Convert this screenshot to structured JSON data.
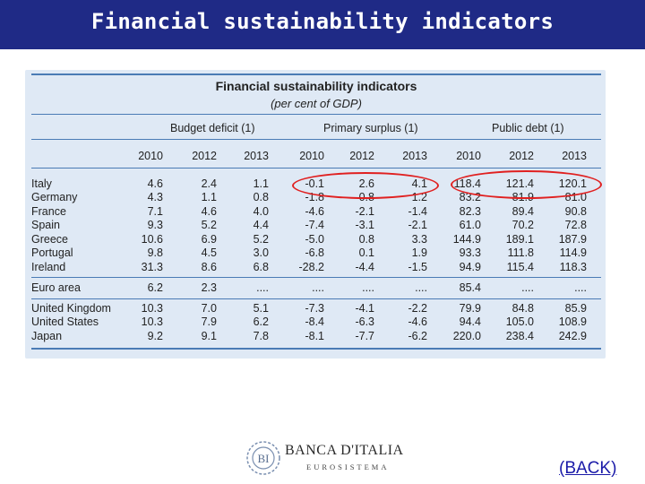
{
  "header": {
    "title": "Financial sustainability indicators"
  },
  "table": {
    "title": "Financial sustainability indicators",
    "subtitle": "(per cent of GDP)",
    "groups": [
      "Budget deficit (1)",
      "Primary surplus (1)",
      "Public debt (1)"
    ],
    "years": [
      "2010",
      "2012",
      "2013",
      "2010",
      "2012",
      "2013",
      "2010",
      "2012",
      "2013"
    ],
    "rows": [
      {
        "label": "Italy",
        "values": [
          "4.6",
          "2.4",
          "1.1",
          "-0.1",
          "2.6",
          "4.1",
          "118.4",
          "121.4",
          "120.1"
        ]
      },
      {
        "label": "Germany",
        "values": [
          "4.3",
          "1.1",
          "0.8",
          "-1.8",
          "0.8",
          "1.2",
          "83.2",
          "81.9",
          "81.0"
        ]
      },
      {
        "label": "France",
        "values": [
          "7.1",
          "4.6",
          "4.0",
          "-4.6",
          "-2.1",
          "-1.4",
          "82.3",
          "89.4",
          "90.8"
        ]
      },
      {
        "label": "Spain",
        "values": [
          "9.3",
          "5.2",
          "4.4",
          "-7.4",
          "-3.1",
          "-2.1",
          "61.0",
          "70.2",
          "72.8"
        ]
      },
      {
        "label": "Greece",
        "values": [
          "10.6",
          "6.9",
          "5.2",
          "-5.0",
          "0.8",
          "3.3",
          "144.9",
          "189.1",
          "187.9"
        ]
      },
      {
        "label": "Portugal",
        "values": [
          "9.8",
          "4.5",
          "3.0",
          "-6.8",
          "0.1",
          "1.9",
          "93.3",
          "111.8",
          "114.9"
        ]
      },
      {
        "label": "Ireland",
        "values": [
          "31.3",
          "8.6",
          "6.8",
          "-28.2",
          "-4.4",
          "-1.5",
          "94.9",
          "115.4",
          "118.3"
        ]
      },
      {
        "label": "Euro area",
        "values": [
          "6.2",
          "2.3",
          "....",
          "....",
          "....",
          "....",
          "85.4",
          "....",
          "...."
        ]
      },
      {
        "label": "United Kingdom",
        "values": [
          "10.3",
          "7.0",
          "5.1",
          "-7.3",
          "-4.1",
          "-2.2",
          "79.9",
          "84.8",
          "85.9"
        ]
      },
      {
        "label": "United States",
        "values": [
          "10.3",
          "7.9",
          "6.2",
          "-8.4",
          "-6.3",
          "-4.6",
          "94.4",
          "105.0",
          "108.9"
        ]
      },
      {
        "label": "Japan",
        "values": [
          "9.2",
          "9.1",
          "7.8",
          "-8.1",
          "-7.7",
          "-6.2",
          "220.0",
          "238.4",
          "242.9"
        ]
      }
    ]
  },
  "logo": {
    "name": "BANCA D'ITALIA",
    "sub": "EUROSISTEMA"
  },
  "nav": {
    "back_label": "(BACK)"
  },
  "colors": {
    "banner": "#1f2a86",
    "panel": "#dfe9f5",
    "rule": "#4a7bb5",
    "highlight": "#e02020",
    "link": "#1a1aa8"
  }
}
